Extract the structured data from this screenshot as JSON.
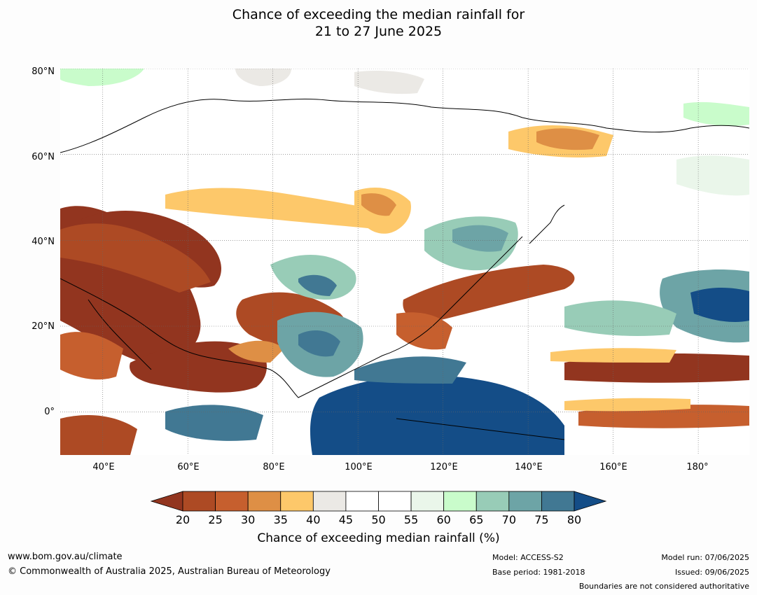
{
  "title": {
    "line1": "Chance of exceeding the median rainfall for",
    "line2": "21 to 27 June 2025"
  },
  "map": {
    "lat_labels": [
      "80°N",
      "60°N",
      "40°N",
      "20°N",
      "0°"
    ],
    "lon_labels": [
      "40°E",
      "60°E",
      "80°E",
      "100°E",
      "120°E",
      "140°E",
      "160°E",
      "180°"
    ],
    "lat_range": [
      -10,
      80
    ],
    "lon_range": [
      30,
      192
    ],
    "gridlines": "dotted"
  },
  "colorbar": {
    "ticks": [
      "20",
      "25",
      "30",
      "35",
      "40",
      "45",
      "50",
      "55",
      "60",
      "65",
      "70",
      "75",
      "80"
    ],
    "colors": [
      "#92351f",
      "#ad4a24",
      "#c65f2e",
      "#de8f45",
      "#fdc86a",
      "#ebe9e5",
      "#ffffff",
      "#ffffff",
      "#eaf6ea",
      "#c9fccb",
      "#98ccb7",
      "#6da4a6",
      "#417893",
      "#144d87"
    ],
    "label": "Chance of exceeding median rainfall (%)"
  },
  "footer": {
    "url": "www.bom.gov.au/climate",
    "copyright": "© Commonwealth of Australia 2025, Australian Bureau of Meteorology",
    "model": "Model: ACCESS-S2",
    "base_period": "Base period: 1981-2018",
    "model_run": "Model run: 07/06/2025",
    "issued": "Issued: 09/06/2025",
    "disclaimer": "Boundaries are not considered authoritative"
  }
}
